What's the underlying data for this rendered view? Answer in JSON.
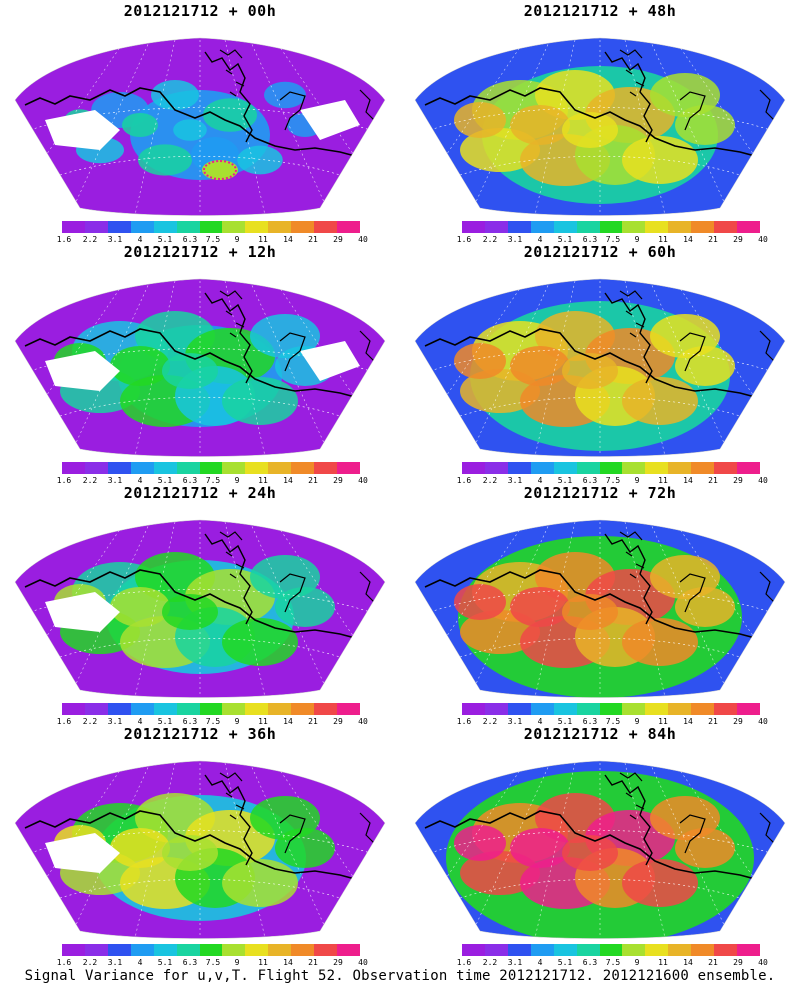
{
  "legend": {
    "labels": [
      "1.6",
      "2.2",
      "3.1",
      "4",
      "5.1",
      "6.3",
      "7.5",
      "9",
      "11",
      "14",
      "21",
      "29",
      "40"
    ],
    "colors": [
      "#9a1ee0",
      "#8a2ee8",
      "#2f52f0",
      "#1f9cf2",
      "#19c4e0",
      "#19d4a0",
      "#22d822",
      "#a8e030",
      "#e8e020",
      "#e8b428",
      "#f08a28",
      "#f04848",
      "#ee1e8c"
    ]
  },
  "panels": [
    {
      "title": "2012121712 + 00h",
      "intensity": 0
    },
    {
      "title": "2012121712 + 48h",
      "intensity": 4
    },
    {
      "title": "2012121712 + 12h",
      "intensity": 1
    },
    {
      "title": "2012121712 + 60h",
      "intensity": 5
    },
    {
      "title": "2012121712 + 24h",
      "intensity": 2
    },
    {
      "title": "2012121712 + 72h",
      "intensity": 6
    },
    {
      "title": "2012121712 + 36h",
      "intensity": 3
    },
    {
      "title": "2012121712 + 84h",
      "intensity": 7
    }
  ],
  "footer": "Signal Variance for u,v,T. Flight 52. Observation time 2012121712. 2012121600 ensemble."
}
